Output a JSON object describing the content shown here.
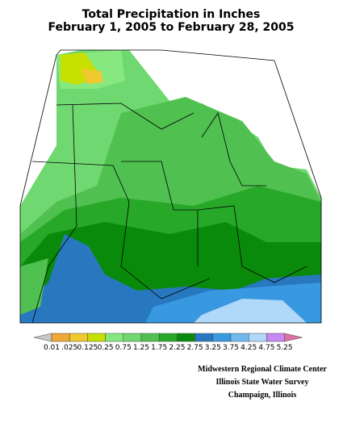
{
  "header": {
    "title": "Total Precipitation in Inches",
    "subtitle": "February 1, 2005 to February 28, 2005"
  },
  "legend": {
    "labels": [
      "0.01",
      ".025",
      "0.125",
      "0.25",
      "0.75",
      "1.25",
      "1.75",
      "2.25",
      "2.75",
      "3.25",
      "3.75",
      "4.25",
      "4.75",
      "5.25"
    ],
    "colors": [
      "#f0a838",
      "#f0c830",
      "#c8e000",
      "#88e880",
      "#70d870",
      "#50c050",
      "#28a828",
      "#0a8a0a",
      "#2878c0",
      "#3898e0",
      "#70b8f0",
      "#b0d8f8",
      "#c888f0"
    ],
    "low_color": "#c8c8c8",
    "high_color": "#e070a8"
  },
  "credits": [
    "Midwestern Regional Climate Center",
    "Illinois State Water Survey",
    "Champaign, Illinois"
  ]
}
